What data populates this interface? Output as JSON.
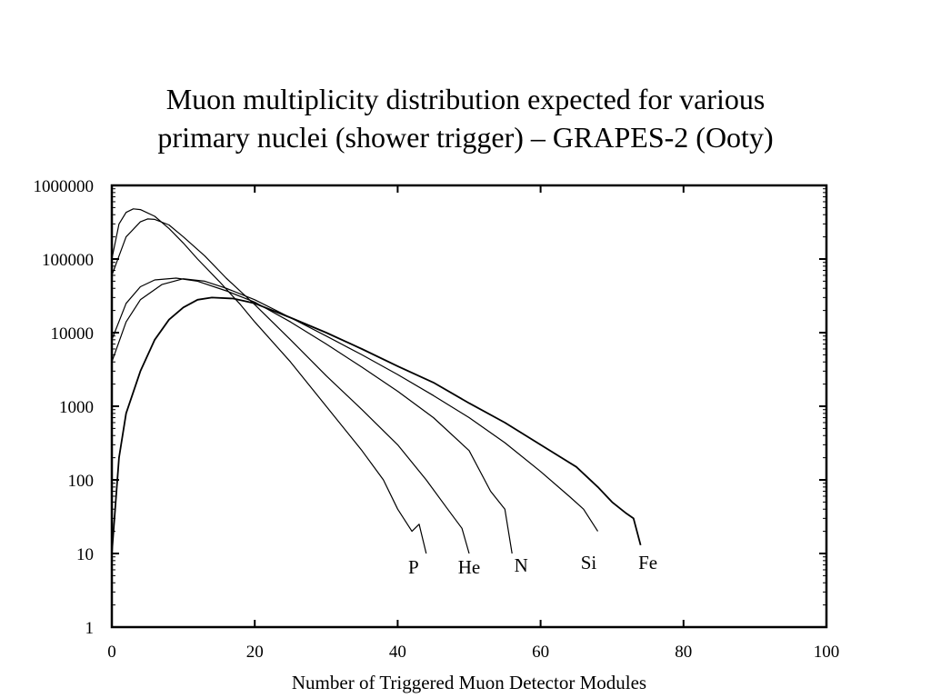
{
  "slide": {
    "title_line1": "Muon multiplicity distribution expected for various",
    "title_line2": "primary nuclei (shower trigger) – GRAPES-2 (Ooty)"
  },
  "chart_data": {
    "type": "line",
    "title": "Muon multiplicity distribution expected for various primary nuclei (shower trigger) – GRAPES-2 (Ooty)",
    "xlabel": "Number of Triggered Muon Detector Modules",
    "ylabel": "",
    "xlim": [
      0,
      100
    ],
    "ylim": [
      1,
      1000000
    ],
    "yscale": "log",
    "grid": false,
    "legend": "inline labels at curve ends",
    "x_ticks": [
      "0",
      "20",
      "40",
      "60",
      "80",
      "100"
    ],
    "y_ticks": [
      "1",
      "10",
      "100",
      "1000",
      "10000",
      "100000",
      "1000000"
    ],
    "series": [
      {
        "name": "P",
        "color": "#000000",
        "points": [
          [
            0,
            100000
          ],
          [
            1,
            300000
          ],
          [
            2,
            430000
          ],
          [
            3,
            480000
          ],
          [
            4,
            470000
          ],
          [
            6,
            380000
          ],
          [
            8,
            260000
          ],
          [
            10,
            165000
          ],
          [
            12,
            100000
          ],
          [
            15,
            50000
          ],
          [
            18,
            24000
          ],
          [
            20,
            14000
          ],
          [
            25,
            4000
          ],
          [
            30,
            1000
          ],
          [
            35,
            250
          ],
          [
            38,
            100
          ],
          [
            40,
            40
          ],
          [
            42,
            20
          ],
          [
            43,
            25
          ],
          [
            44,
            10
          ]
        ]
      },
      {
        "name": "He",
        "color": "#000000",
        "points": [
          [
            0,
            60000
          ],
          [
            2,
            200000
          ],
          [
            4,
            320000
          ],
          [
            5,
            350000
          ],
          [
            6,
            345000
          ],
          [
            8,
            290000
          ],
          [
            10,
            200000
          ],
          [
            13,
            110000
          ],
          [
            16,
            55000
          ],
          [
            20,
            24000
          ],
          [
            25,
            8000
          ],
          [
            30,
            2600
          ],
          [
            35,
            900
          ],
          [
            40,
            300
          ],
          [
            44,
            100
          ],
          [
            47,
            40
          ],
          [
            49,
            22
          ],
          [
            50,
            10
          ]
        ]
      },
      {
        "name": "N",
        "color": "#000000",
        "points": [
          [
            0,
            8000
          ],
          [
            2,
            25000
          ],
          [
            4,
            42000
          ],
          [
            6,
            52000
          ],
          [
            9,
            55000
          ],
          [
            12,
            50000
          ],
          [
            16,
            37000
          ],
          [
            20,
            26000
          ],
          [
            25,
            14000
          ],
          [
            30,
            7000
          ],
          [
            35,
            3400
          ],
          [
            40,
            1600
          ],
          [
            45,
            700
          ],
          [
            50,
            250
          ],
          [
            53,
            70
          ],
          [
            55,
            40
          ],
          [
            56,
            10
          ]
        ]
      },
      {
        "name": "Si",
        "color": "#000000",
        "points": [
          [
            0,
            4000
          ],
          [
            2,
            14000
          ],
          [
            4,
            28000
          ],
          [
            7,
            45000
          ],
          [
            10,
            54000
          ],
          [
            13,
            50000
          ],
          [
            16,
            40000
          ],
          [
            20,
            28000
          ],
          [
            25,
            16000
          ],
          [
            30,
            9000
          ],
          [
            35,
            5000
          ],
          [
            40,
            2700
          ],
          [
            45,
            1400
          ],
          [
            50,
            700
          ],
          [
            55,
            320
          ],
          [
            60,
            130
          ],
          [
            64,
            60
          ],
          [
            66,
            40
          ],
          [
            68,
            20
          ]
        ]
      },
      {
        "name": "Fe",
        "color": "#000000",
        "points": [
          [
            0,
            10
          ],
          [
            1,
            200
          ],
          [
            2,
            800
          ],
          [
            4,
            3000
          ],
          [
            6,
            8000
          ],
          [
            8,
            15000
          ],
          [
            10,
            22000
          ],
          [
            12,
            28000
          ],
          [
            14,
            30000
          ],
          [
            17,
            29000
          ],
          [
            20,
            25000
          ],
          [
            25,
            16000
          ],
          [
            30,
            10000
          ],
          [
            35,
            6000
          ],
          [
            40,
            3500
          ],
          [
            45,
            2100
          ],
          [
            50,
            1100
          ],
          [
            55,
            600
          ],
          [
            60,
            300
          ],
          [
            65,
            150
          ],
          [
            68,
            80
          ],
          [
            70,
            50
          ],
          [
            72,
            35
          ],
          [
            73,
            30
          ],
          [
            74,
            13
          ]
        ]
      }
    ]
  }
}
